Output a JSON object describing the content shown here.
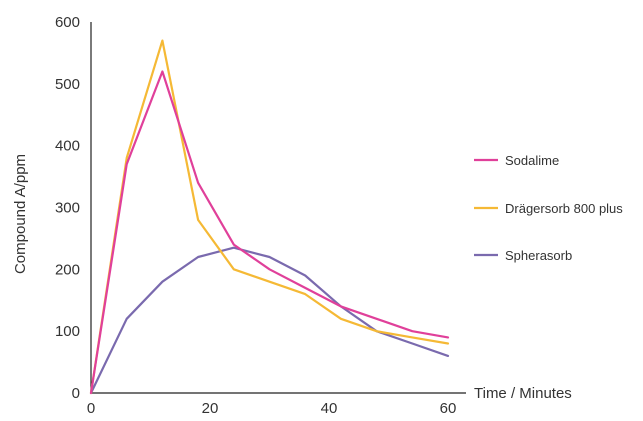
{
  "chart_data": {
    "type": "line",
    "title": "",
    "xlabel": "Time / Minutes",
    "ylabel": "Compound A/ppm",
    "xlim": [
      0,
      60
    ],
    "ylim": [
      0,
      600
    ],
    "x_ticks": [
      0,
      20,
      40,
      60
    ],
    "y_ticks": [
      0,
      100,
      200,
      300,
      400,
      500,
      600
    ],
    "grid": false,
    "legend_position": "right",
    "series": [
      {
        "name": "Sodalime",
        "color": "#e0409a",
        "x": [
          0,
          6,
          12,
          18,
          24,
          30,
          36,
          42,
          48,
          54,
          60
        ],
        "y": [
          0,
          370,
          520,
          340,
          240,
          200,
          170,
          140,
          120,
          100,
          90
        ]
      },
      {
        "name": "Drägersorb 800 plus",
        "color": "#f5b935",
        "x": [
          0,
          6,
          12,
          18,
          24,
          30,
          36,
          42,
          48,
          54,
          60
        ],
        "y": [
          0,
          380,
          570,
          280,
          200,
          180,
          160,
          120,
          100,
          90,
          80
        ]
      },
      {
        "name": "Spherasorb",
        "color": "#7a6aae",
        "x": [
          0,
          6,
          12,
          18,
          24,
          30,
          36,
          42,
          48,
          54,
          60
        ],
        "y": [
          0,
          120,
          180,
          220,
          235,
          220,
          190,
          140,
          100,
          80,
          60
        ]
      }
    ]
  }
}
